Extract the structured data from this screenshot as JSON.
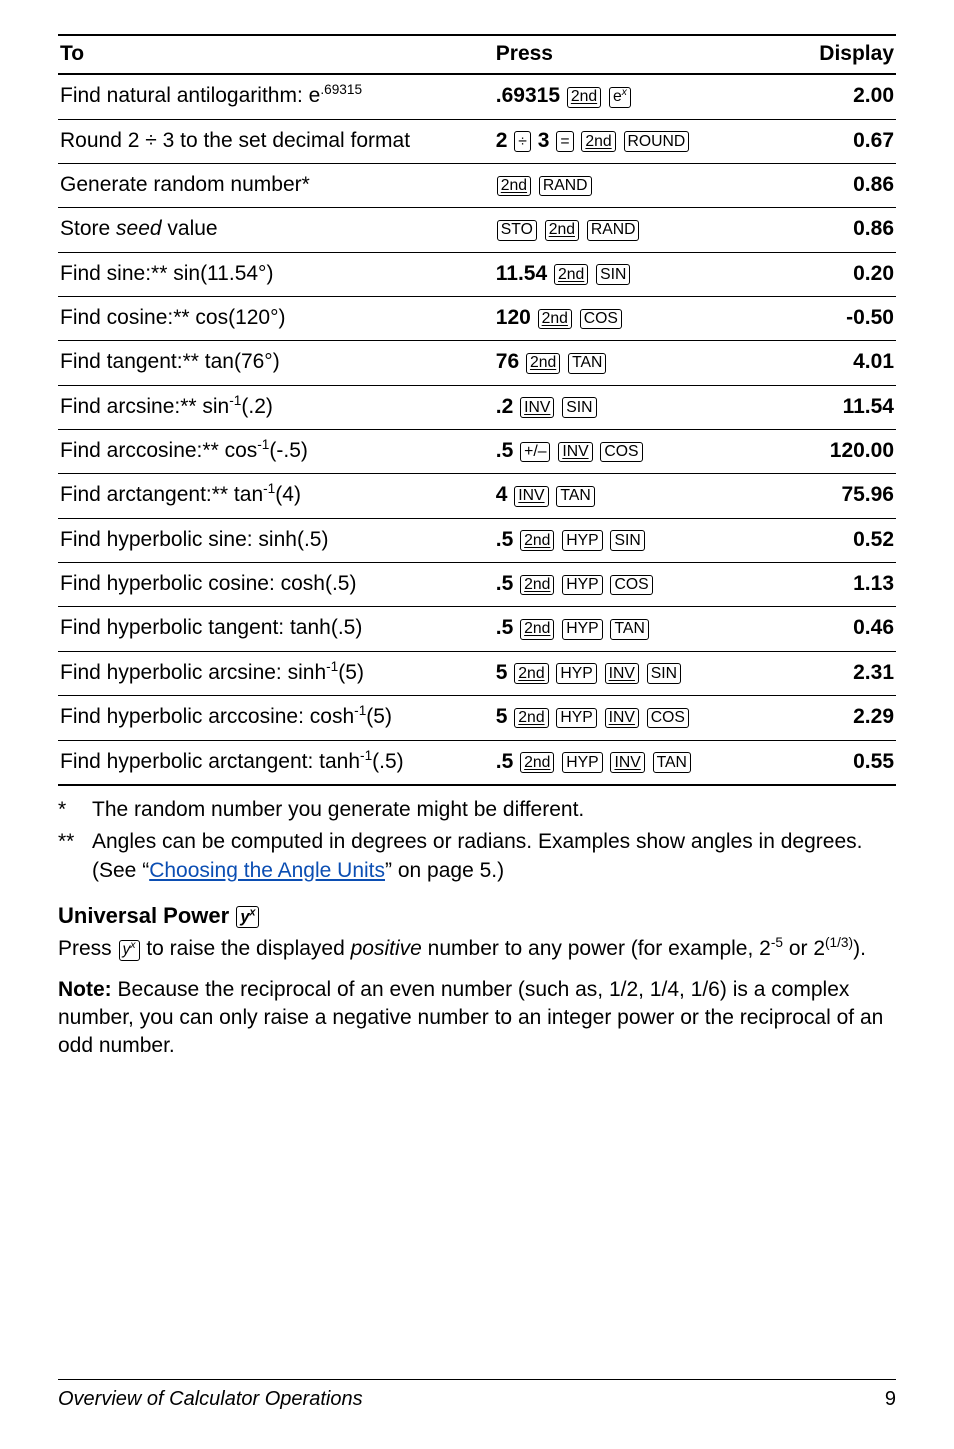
{
  "col_to": "To",
  "col_press": "Press",
  "col_display": "Display",
  "r0_to_a": "Find natural antilogarithm: e",
  "r0_sup": ".69315",
  "r0_p0": ".69315",
  "r0_k0": "2nd",
  "r0_k1a": "e",
  "r0_k1b": "x",
  "r0_disp": "2.00",
  "r1_to": "Round 2 ÷ 3 to the set decimal format",
  "r1_p0": "2",
  "r1_k0": "÷",
  "r1_p1": "3",
  "r1_k1": "=",
  "r1_k2": "2nd",
  "r1_k3": "ROUND",
  "r1_disp": "0.67",
  "r2_to": "Generate random number*",
  "r2_k0": "2nd",
  "r2_k1": "RAND",
  "r2_disp": "0.86",
  "r3_to_a": "Store ",
  "r3_to_b": "seed",
  "r3_to_c": " value",
  "r3_k0": "STO",
  "r3_k1": "2nd",
  "r3_k2": "RAND",
  "r3_disp": "0.86",
  "r4_to": "Find sine:** sin(11.54°)",
  "r4_p0": "11.54",
  "r4_k0": "2nd",
  "r4_k1": "SIN",
  "r4_disp": "0.20",
  "r5_to": "Find cosine:** cos(120°)",
  "r5_p0": "120",
  "r5_k0": "2nd",
  "r5_k1": "COS",
  "r5_disp": "-0.50",
  "r6_to": "Find tangent:** tan(76°)",
  "r6_p0": "76",
  "r6_k0": "2nd",
  "r6_k1": "TAN",
  "r6_disp": "4.01",
  "r7_to_a": "Find arcsine:** sin",
  "r7_sup": "-1",
  "r7_to_b": "(.2)",
  "r7_p0": ".2",
  "r7_k0": "INV",
  "r7_k1": "SIN",
  "r7_disp": "11.54",
  "r8_to_a": "Find arccosine:** cos",
  "r8_sup": "-1",
  "r8_to_b": "(-.5)",
  "r8_p0": ".5",
  "r8_k0": "+/–",
  "r8_k1": "INV",
  "r8_k2": "COS",
  "r8_disp": "120.00",
  "r9_to_a": "Find arctangent:** tan",
  "r9_sup": "-1",
  "r9_to_b": "(4)",
  "r9_p0": "4",
  "r9_k0": "INV",
  "r9_k1": "TAN",
  "r9_disp": "75.96",
  "r10_to": "Find hyperbolic sine: sinh(.5)",
  "r10_p0": ".5",
  "r10_k0": "2nd",
  "r10_k1": "HYP",
  "r10_k2": "SIN",
  "r10_disp": "0.52",
  "r11_to": "Find hyperbolic cosine: cosh(.5)",
  "r11_p0": ".5",
  "r11_k0": "2nd",
  "r11_k1": "HYP",
  "r11_k2": "COS",
  "r11_disp": "1.13",
  "r12_to": "Find hyperbolic tangent: tanh(.5)",
  "r12_p0": ".5",
  "r12_k0": "2nd",
  "r12_k1": "HYP",
  "r12_k2": "TAN",
  "r12_disp": "0.46",
  "r13_to_a": "Find hyperbolic arcsine: sinh",
  "r13_sup": "-1",
  "r13_to_b": "(5)",
  "r13_p0": "5",
  "r13_k0": "2nd",
  "r13_k1": "HYP",
  "r13_k2": "INV",
  "r13_k3": "SIN",
  "r13_disp": "2.31",
  "r14_to_a": "Find hyperbolic arccosine: cosh",
  "r14_sup": "-1",
  "r14_to_b": "(5)",
  "r14_p0": "5",
  "r14_k0": "2nd",
  "r14_k1": "HYP",
  "r14_k2": "INV",
  "r14_k3": "COS",
  "r14_disp": "2.29",
  "r15_to_a": "Find hyperbolic arctangent: tanh",
  "r15_sup": "-1",
  "r15_to_b": "(.5)",
  "r15_p0": ".5",
  "r15_k0": "2nd",
  "r15_k1": "HYP",
  "r15_k2": "INV",
  "r15_k3": "TAN",
  "r15_disp": "0.55",
  "note1_mark": "*",
  "note1_text": "The random number you generate might be different.",
  "note2_mark": "**",
  "note2_a": "Angles can be computed in degrees or radians. Examples show angles in degrees. (See “",
  "note2_link": "Choosing the Angle Units",
  "note2_b": "” on page 5.)",
  "h2": "Universal Power ",
  "h2_keya": "y",
  "h2_keyb": "x",
  "para1_a": "Press ",
  "para1_keya": "y",
  "para1_keyb": "x",
  "para1_b": " to raise the displayed ",
  "para1_c": "positive",
  "para1_d": " number to any power (for example, 2",
  "para1_e": "-5",
  "para1_f": " or 2",
  "para1_g": "(1/3)",
  "para1_h": ").",
  "para2_a": "Note:",
  "para2_b": " Because the reciprocal of an even number (such as, 1/2, 1/4, 1/6) is a complex number, you can only raise a negative number to an integer power or the reciprocal of an odd number.",
  "footer_title": "Overview of Calculator Operations",
  "footer_page": "9"
}
